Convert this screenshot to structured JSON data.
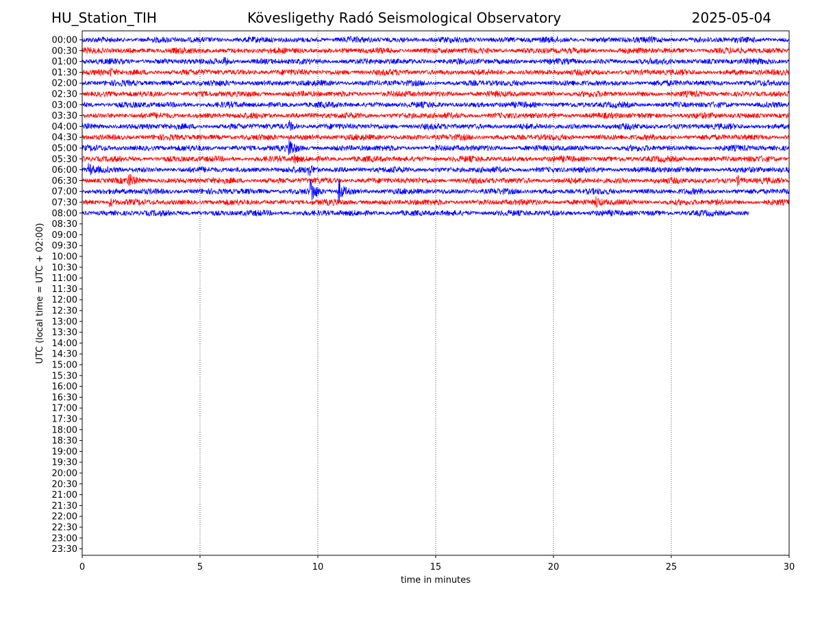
{
  "header": {
    "station": "HU_Station_TIH",
    "observatory": "Kövesligethy Radó Seismological Observatory",
    "date": "2025-05-04"
  },
  "chart_data": {
    "type": "line",
    "title": "Kövesligethy Radó Seismological Observatory",
    "xlabel": "time in minutes",
    "ylabel": "UTC (local time = UTC + 02:00)",
    "xlim": [
      0,
      30
    ],
    "xticks": [
      0,
      5,
      10,
      15,
      20,
      25,
      30
    ],
    "grid": "vertical dotted lines at x ticks",
    "row_labels": [
      "00:00",
      "00:30",
      "01:00",
      "01:30",
      "02:00",
      "02:30",
      "03:00",
      "03:30",
      "04:00",
      "04:30",
      "05:00",
      "05:30",
      "06:00",
      "06:30",
      "07:00",
      "07:30",
      "08:00",
      "08:30",
      "09:00",
      "09:30",
      "10:00",
      "10:30",
      "11:00",
      "11:30",
      "12:00",
      "12:30",
      "13:00",
      "13:30",
      "14:00",
      "14:30",
      "15:00",
      "15:30",
      "16:00",
      "16:30",
      "17:00",
      "17:30",
      "18:00",
      "18:30",
      "19:00",
      "19:30",
      "20:00",
      "20:30",
      "21:00",
      "21:30",
      "22:00",
      "22:30",
      "23:00",
      "23:30"
    ],
    "colors": {
      "even_rows": "#0000ff",
      "odd_rows": "#ff0000"
    },
    "traces": [
      {
        "row": "00:00",
        "x_end": 30,
        "events": []
      },
      {
        "row": "00:30",
        "x_end": 30,
        "events": []
      },
      {
        "row": "01:00",
        "x_end": 30,
        "events": [
          {
            "x": 6.0,
            "amp": 0.8
          }
        ]
      },
      {
        "row": "01:30",
        "x_end": 30,
        "events": [
          {
            "x": 1.2,
            "amp": 0.6
          }
        ]
      },
      {
        "row": "02:00",
        "x_end": 30,
        "events": []
      },
      {
        "row": "02:30",
        "x_end": 30,
        "events": []
      },
      {
        "row": "03:00",
        "x_end": 30,
        "events": []
      },
      {
        "row": "03:30",
        "x_end": 30,
        "events": []
      },
      {
        "row": "04:00",
        "x_end": 30,
        "events": [
          {
            "x": 8.8,
            "amp": 0.8
          }
        ]
      },
      {
        "row": "04:30",
        "x_end": 30,
        "events": []
      },
      {
        "row": "05:00",
        "x_end": 30,
        "events": [
          {
            "x": 8.8,
            "amp": 1.8
          }
        ]
      },
      {
        "row": "05:30",
        "x_end": 30,
        "events": [
          {
            "x": 9.0,
            "amp": 0.8
          }
        ]
      },
      {
        "row": "06:00",
        "x_end": 30,
        "events": [
          {
            "x": 0.3,
            "amp": 1.0
          },
          {
            "x": 9.6,
            "amp": 1.2
          }
        ]
      },
      {
        "row": "06:30",
        "x_end": 30,
        "events": [
          {
            "x": 2.0,
            "amp": 1.0
          },
          {
            "x": 27.8,
            "amp": 0.9
          }
        ]
      },
      {
        "row": "07:00",
        "x_end": 30,
        "events": [
          {
            "x": 9.7,
            "amp": 2.6
          },
          {
            "x": 10.9,
            "amp": 2.2
          }
        ]
      },
      {
        "row": "07:30",
        "x_end": 30,
        "events": [
          {
            "x": 1.2,
            "amp": 0.8
          },
          {
            "x": 21.8,
            "amp": 1.0
          }
        ]
      },
      {
        "row": "08:00",
        "x_end": 28.3,
        "events": []
      }
    ]
  }
}
